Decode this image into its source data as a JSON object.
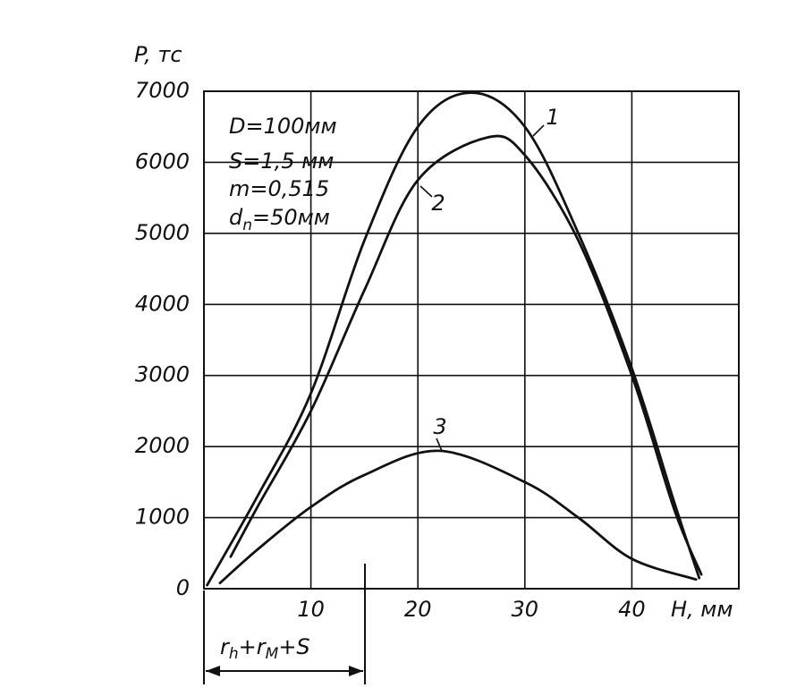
{
  "chart_data": {
    "type": "line",
    "y_label": "P, тс",
    "x_label": "H, мм",
    "xlim": [
      0,
      50
    ],
    "xticks": [
      10,
      20,
      30,
      40
    ],
    "ylim": [
      0,
      7000
    ],
    "yticks": [
      0,
      1000,
      2000,
      3000,
      4000,
      5000,
      6000,
      7000
    ],
    "grid": true,
    "series": [
      {
        "name": "1",
        "color": "#111111",
        "x": [
          0.3,
          5,
          10,
          15,
          20,
          25,
          30,
          35,
          40,
          44,
          46.3
        ],
        "values": [
          50,
          1300,
          2750,
          4900,
          6500,
          6980,
          6500,
          5000,
          3100,
          1200,
          150
        ]
      },
      {
        "name": "2",
        "color": "#111111",
        "x": [
          2.5,
          5,
          10,
          15,
          20,
          26.5,
          30,
          35,
          40,
          44,
          46.5
        ],
        "values": [
          450,
          1150,
          2500,
          4200,
          5750,
          6350,
          6100,
          4900,
          3000,
          1100,
          200
        ]
      },
      {
        "name": "3",
        "color": "#111111",
        "x": [
          1.5,
          5,
          10,
          15,
          22,
          30,
          35,
          40,
          46
        ],
        "values": [
          80,
          550,
          1150,
          1600,
          1940,
          1500,
          1000,
          420,
          130
        ]
      }
    ],
    "annotations": [
      {
        "main": "D=100мм"
      },
      {
        "main": "S=1,5 мм"
      },
      {
        "main": "m=0,515"
      },
      {
        "main": "d",
        "sub": "n",
        "rest": "=50мм"
      }
    ],
    "dimension": {
      "a": "r",
      "a_sub": "h",
      "b": "+r",
      "b_sub": "M",
      "c": "+S"
    }
  }
}
